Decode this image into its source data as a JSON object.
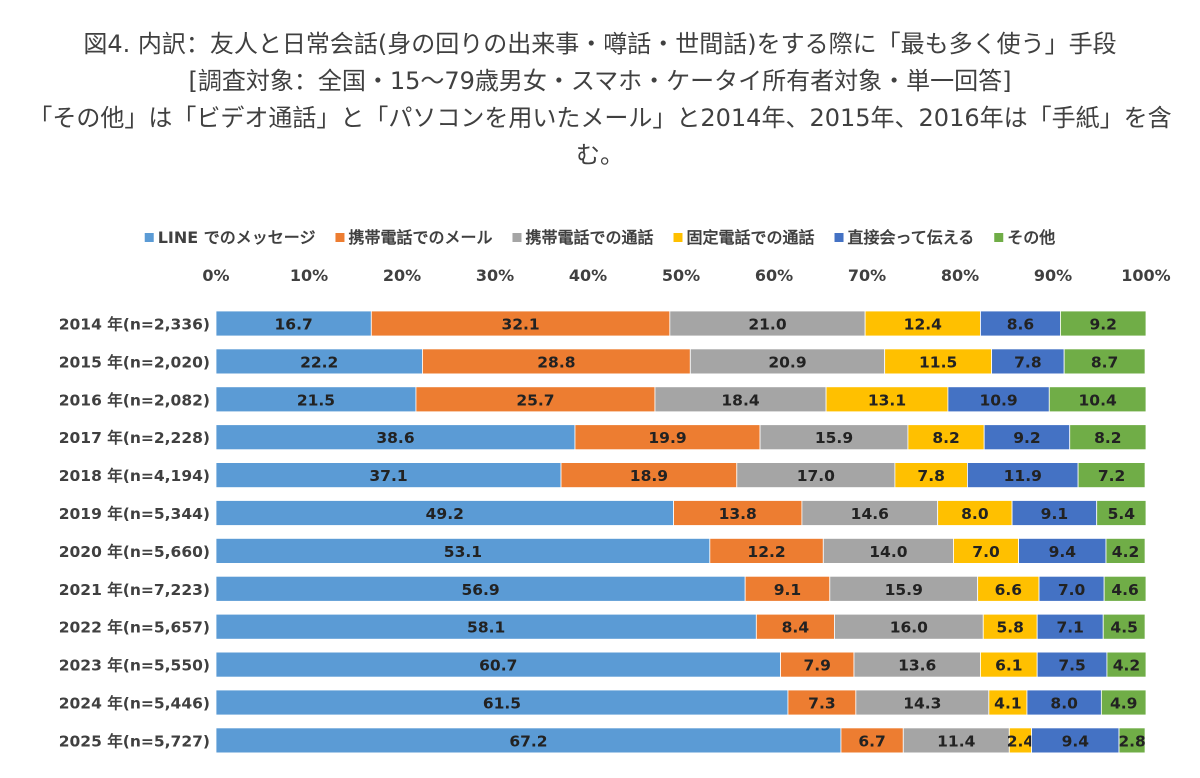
{
  "title": {
    "line1": "図4. 内訳：友人と日常会話(身の回りの出来事・噂話・世間話)をする際に「最も多く使う」手段",
    "line2": "[調査対象：全国・15～79歳男女・スマホ・ケータイ所有者対象・単一回答]",
    "line3": "「その他」は「ビデオ通話」と「パソコンを用いたメール」と2014年、2015年、2016年は「手紙」を含む。"
  },
  "chart_data": {
    "type": "bar",
    "orientation": "horizontal",
    "stacked": true,
    "legend_position": "top",
    "x_ticks": [
      "0%",
      "10%",
      "20%",
      "30%",
      "40%",
      "50%",
      "60%",
      "70%",
      "80%",
      "90%",
      "100%"
    ],
    "xlim": [
      0,
      100
    ],
    "categories": [
      "2014 年(n=2,336)",
      "2015 年(n=2,020)",
      "2016 年(n=2,082)",
      "2017 年(n=2,228)",
      "2018 年(n=4,194)",
      "2019 年(n=5,344)",
      "2020 年(n=5,660)",
      "2021 年(n=7,223)",
      "2022 年(n=5,657)",
      "2023 年(n=5,550)",
      "2024 年(n=5,446)",
      "2025 年(n=5,727)"
    ],
    "series": [
      {
        "name": "LINE でのメッセージ",
        "color": "#5B9BD5",
        "values": [
          16.7,
          22.2,
          21.5,
          38.6,
          37.1,
          49.2,
          53.1,
          56.9,
          58.1,
          60.7,
          61.5,
          67.2
        ]
      },
      {
        "name": "携帯電話でのメール",
        "color": "#ED7D31",
        "values": [
          32.1,
          28.8,
          25.7,
          19.9,
          18.9,
          13.8,
          12.2,
          9.1,
          8.4,
          7.9,
          7.3,
          6.7
        ]
      },
      {
        "name": "携帯電話での通話",
        "color": "#A5A5A5",
        "values": [
          21.0,
          20.9,
          18.4,
          15.9,
          17.0,
          14.6,
          14.0,
          15.9,
          16.0,
          13.6,
          14.3,
          11.4
        ]
      },
      {
        "name": "固定電話での通話",
        "color": "#FFC000",
        "values": [
          12.4,
          11.5,
          13.1,
          8.2,
          7.8,
          8.0,
          7.0,
          6.6,
          5.8,
          6.1,
          4.1,
          2.4
        ]
      },
      {
        "name": "直接会って伝える",
        "color": "#4472C4",
        "values": [
          8.6,
          7.8,
          10.9,
          9.2,
          11.9,
          9.1,
          9.4,
          7.0,
          7.1,
          7.5,
          8.0,
          9.4
        ]
      },
      {
        "name": "その他",
        "color": "#70AD47",
        "values": [
          9.2,
          8.7,
          10.4,
          8.2,
          7.2,
          5.4,
          4.2,
          4.6,
          4.5,
          4.2,
          4.9,
          2.8
        ]
      }
    ]
  }
}
